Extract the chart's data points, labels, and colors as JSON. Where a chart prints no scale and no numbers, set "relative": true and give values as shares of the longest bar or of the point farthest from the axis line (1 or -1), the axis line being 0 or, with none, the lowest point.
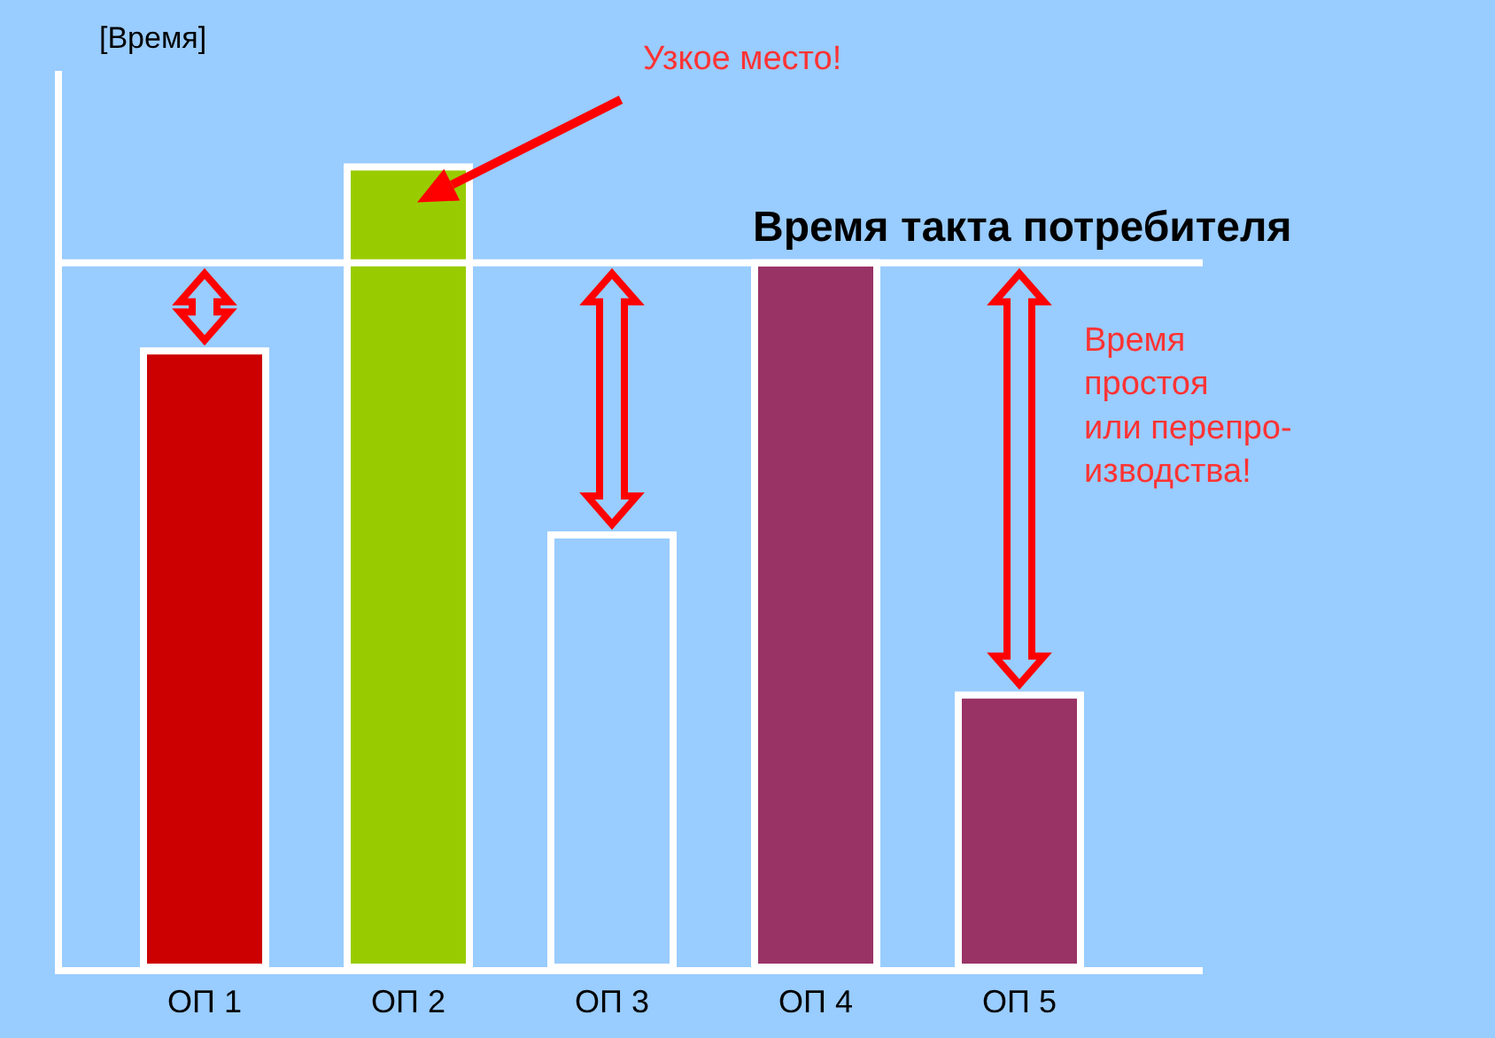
{
  "chart_data": {
    "type": "bar",
    "relative": true,
    "ylabel": "[Время]",
    "categories": [
      "ОП 1",
      "ОП 2",
      "ОП 3",
      "ОП 4",
      "ОП 5"
    ],
    "values": [
      0.77,
      1,
      0.54,
      0.88,
      0.34
    ],
    "colors": [
      "#cc0000",
      "#99cc00",
      "#99ccff",
      "#993366",
      "#993366"
    ],
    "ref_lines": [
      {
        "axis": "y",
        "value": 0.88,
        "label": "Время такта потребителя",
        "color": "#ffffff"
      }
    ],
    "annotations": [
      "Узкое место!",
      "Время\nпростоя\nили перепро-\nизводства!"
    ],
    "grid": false,
    "legend": false
  }
}
